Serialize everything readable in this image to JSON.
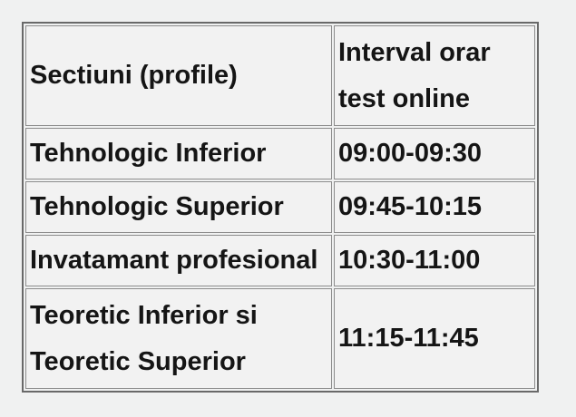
{
  "page": {
    "background_color": "#f0f1f1"
  },
  "schedule_table": {
    "headers": {
      "sections": "Sectiuni (profile)",
      "interval": "Interval orar test online"
    },
    "rows": [
      {
        "section": "Tehnologic Inferior",
        "interval": "09:00-09:30"
      },
      {
        "section": "Tehnologic Superior",
        "interval": "09:45-10:15"
      },
      {
        "section": "Invatamant profesional",
        "interval": "10:30-11:00"
      },
      {
        "section": "Teoretic Inferior si Teoretic Superior",
        "interval": "11:15-11:45"
      }
    ],
    "colors": {
      "page_background": "#f0f1f1",
      "cell_background": "#f2f2f2",
      "outer_border": "#696969",
      "cell_border": "#8c8c8c",
      "text": "#151515"
    }
  }
}
